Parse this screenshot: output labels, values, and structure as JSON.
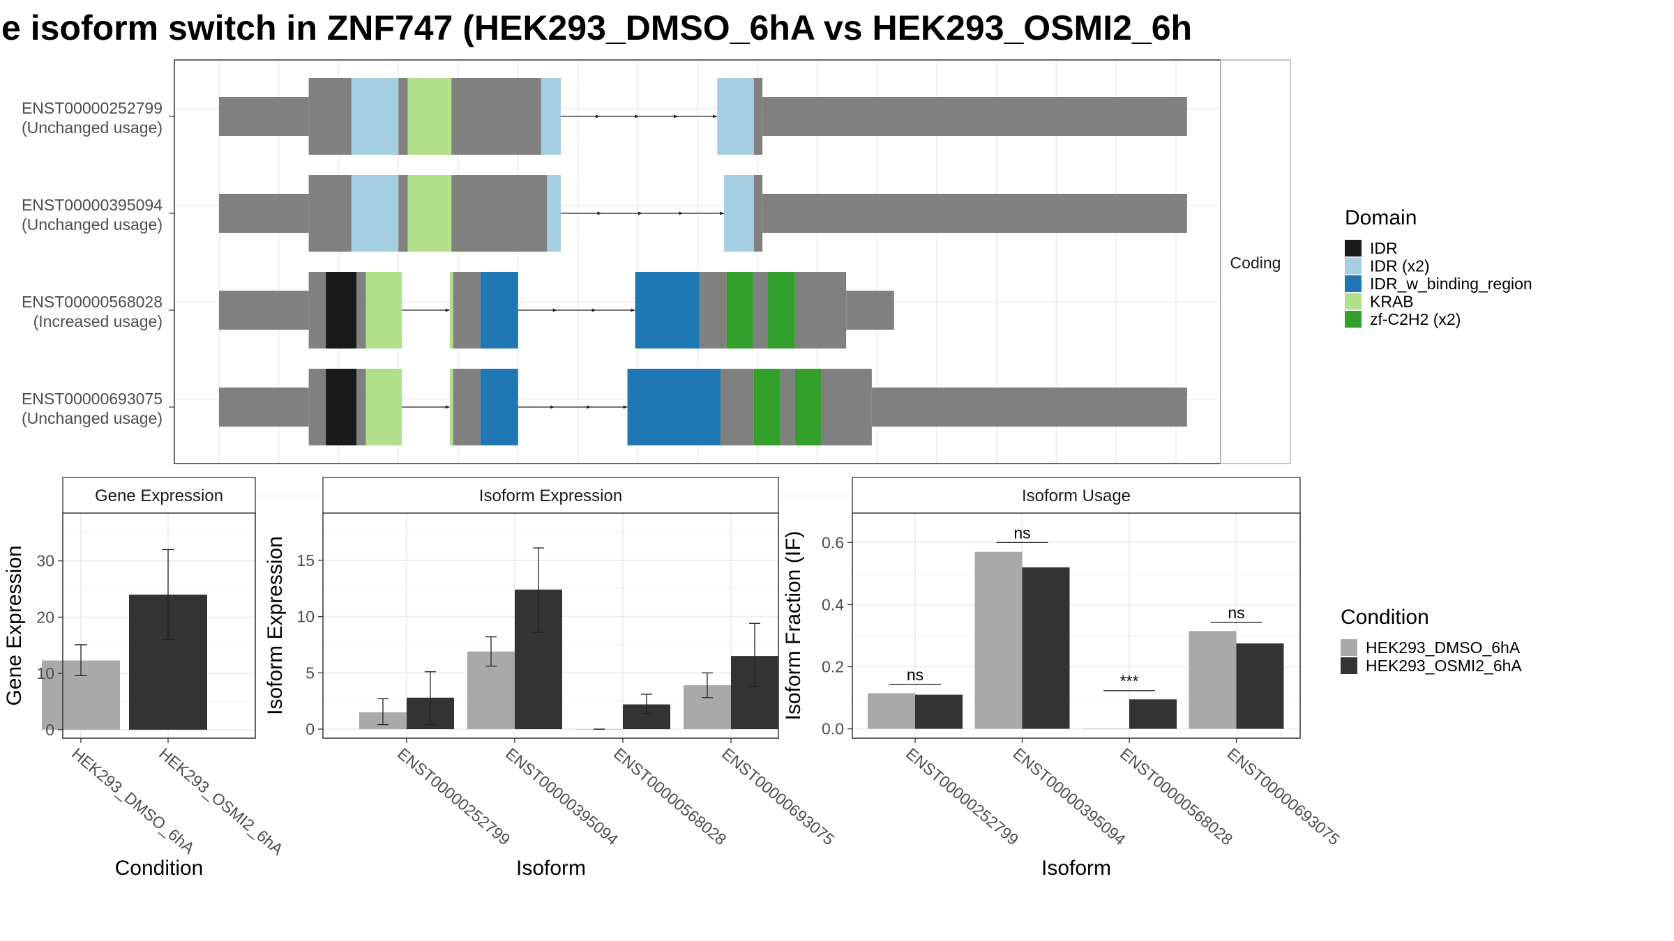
{
  "title": "e isoform switch in ZNF747 (HEK293_DMSO_6hA vs HEK293_OSMI2_6h",
  "colors": {
    "dmso": "#A9A9A9",
    "osmi": "#333333",
    "exon": "#808080",
    "IDR": "#1A1A1A",
    "IDR (x2)": "#A6CEE3",
    "IDR_w_binding_region": "#1F78B4",
    "KRAB": "#B2DF8A",
    "zf-C2H2 (x2)": "#33A02C",
    "grid": "#EBEBEB",
    "strip": "#FFFFFF"
  },
  "structure": {
    "strip_label": "Coding",
    "isoforms": [
      {
        "id": "ENST00000252799",
        "usage": "(Unchanged usage)",
        "segments": [
          [
            "utr",
            70,
            175
          ],
          [
            "cds",
            175,
            225
          ],
          [
            "IDR (x2)",
            225,
            280
          ],
          [
            "cds",
            280,
            291
          ],
          [
            "KRAB",
            291,
            342
          ],
          [
            "cds",
            342,
            447
          ],
          [
            "IDR (x2)",
            447,
            470
          ],
          [
            "intron",
            470,
            653
          ],
          [
            "IDR (x2)",
            653,
            696
          ],
          [
            "cds",
            696,
            706
          ],
          [
            "utr",
            706,
            1203
          ]
        ]
      },
      {
        "id": "ENST00000395094",
        "usage": "(Unchanged usage)",
        "segments": [
          [
            "utr",
            70,
            175
          ],
          [
            "cds",
            175,
            225
          ],
          [
            "IDR (x2)",
            225,
            280
          ],
          [
            "cds",
            280,
            291
          ],
          [
            "KRAB",
            291,
            342
          ],
          [
            "cds",
            342,
            454
          ],
          [
            "IDR (x2)",
            454,
            470
          ],
          [
            "intron",
            470,
            661
          ],
          [
            "IDR (x2)",
            661,
            696
          ],
          [
            "cds",
            696,
            706
          ],
          [
            "utr",
            706,
            1203
          ]
        ]
      },
      {
        "id": "ENST00000568028",
        "usage": "(Increased usage)",
        "segments": [
          [
            "utr",
            70,
            175
          ],
          [
            "cds",
            175,
            195
          ],
          [
            "IDR",
            195,
            231
          ],
          [
            "cds",
            231,
            242
          ],
          [
            "KRAB",
            242,
            284
          ],
          [
            "intron",
            284,
            340
          ],
          [
            "KRAB",
            340,
            344
          ],
          [
            "cds",
            344,
            376
          ],
          [
            "IDR_w_binding_region",
            376,
            420
          ],
          [
            "intron",
            420,
            557
          ],
          [
            "IDR_w_binding_region",
            557,
            632
          ],
          [
            "cds",
            632,
            664
          ],
          [
            "zf-C2H2 (x2)",
            664,
            695
          ],
          [
            "cds",
            695,
            712
          ],
          [
            "zf-C2H2 (x2)",
            712,
            744
          ],
          [
            "cds",
            744,
            804
          ],
          [
            "utr",
            804,
            860
          ]
        ]
      },
      {
        "id": "ENST00000693075",
        "usage": "(Unchanged usage)",
        "segments": [
          [
            "utr",
            70,
            175
          ],
          [
            "cds",
            175,
            195
          ],
          [
            "IDR",
            195,
            231
          ],
          [
            "cds",
            231,
            242
          ],
          [
            "KRAB",
            242,
            284
          ],
          [
            "intron",
            284,
            340
          ],
          [
            "KRAB",
            340,
            344
          ],
          [
            "cds",
            344,
            376
          ],
          [
            "IDR_w_binding_region",
            376,
            420
          ],
          [
            "intron",
            420,
            548
          ],
          [
            "IDR_w_binding_region",
            548,
            657
          ],
          [
            "cds",
            657,
            696
          ],
          [
            "zf-C2H2 (x2)",
            696,
            727
          ],
          [
            "cds",
            727,
            744
          ],
          [
            "zf-C2H2 (x2)",
            744,
            775
          ],
          [
            "cds",
            775,
            834
          ],
          [
            "utr",
            834,
            1203
          ]
        ]
      }
    ]
  },
  "domain_legend": {
    "title": "Domain",
    "entries": [
      "IDR",
      "IDR (x2)",
      "IDR_w_binding_region",
      "KRAB",
      "zf-C2H2 (x2)"
    ]
  },
  "condition_legend": {
    "title": "Condition",
    "entries": [
      "HEK293_DMSO_6hA",
      "HEK293_OSMI2_6hA"
    ]
  },
  "chart_data": [
    {
      "type": "bar",
      "title": "Gene Expression",
      "xlabel": "Condition",
      "ylabel": "Gene Expression",
      "categories": [
        "HEK293_DMSO_6hA",
        "HEK293_OSMI2_6hA"
      ],
      "values": [
        12.3,
        24.0
      ],
      "error": [
        [
          9.6,
          15.1
        ],
        [
          16.0,
          32.0
        ]
      ],
      "ylim": [
        -1.5,
        38.5
      ],
      "yticks": [
        0,
        10,
        20,
        30
      ]
    },
    {
      "type": "bar",
      "title": "Isoform Expression",
      "xlabel": "Isoform",
      "ylabel": "Isoform Expression",
      "categories": [
        "ENST00000252799",
        "ENST00000395094",
        "ENST00000568028",
        "ENST00000693075"
      ],
      "series": [
        {
          "name": "HEK293_DMSO_6hA",
          "values": [
            1.5,
            6.9,
            0.0,
            3.9
          ],
          "error": [
            [
              0.4,
              2.7
            ],
            [
              5.6,
              8.2
            ],
            [
              0.0,
              0.0
            ],
            [
              2.8,
              5.0
            ]
          ]
        },
        {
          "name": "HEK293_OSMI2_6hA",
          "values": [
            2.8,
            12.4,
            2.2,
            6.5
          ],
          "error": [
            [
              0.4,
              5.1
            ],
            [
              8.6,
              16.1
            ],
            [
              1.4,
              3.1
            ],
            [
              3.8,
              9.4
            ]
          ]
        }
      ],
      "ylim": [
        -0.8,
        19.2
      ],
      "yticks": [
        0,
        5,
        10,
        15
      ]
    },
    {
      "type": "bar",
      "title": "Isoform Usage",
      "xlabel": "Isoform",
      "ylabel": "Isoform Fraction (IF)",
      "categories": [
        "ENST00000252799",
        "ENST00000395094",
        "ENST00000568028",
        "ENST00000693075"
      ],
      "series": [
        {
          "name": "HEK293_DMSO_6hA",
          "values": [
            0.115,
            0.57,
            0.0,
            0.315
          ]
        },
        {
          "name": "HEK293_OSMI2_6hA",
          "values": [
            0.11,
            0.52,
            0.095,
            0.275
          ]
        }
      ],
      "significance": [
        {
          "label": "ns",
          "y": 0.143
        },
        {
          "label": "ns",
          "y": 0.6
        },
        {
          "label": "***",
          "y": 0.123
        },
        {
          "label": "ns",
          "y": 0.343
        }
      ],
      "ylim": [
        -0.03,
        0.695
      ],
      "yticks": [
        0.0,
        0.2,
        0.4,
        0.6
      ]
    }
  ]
}
